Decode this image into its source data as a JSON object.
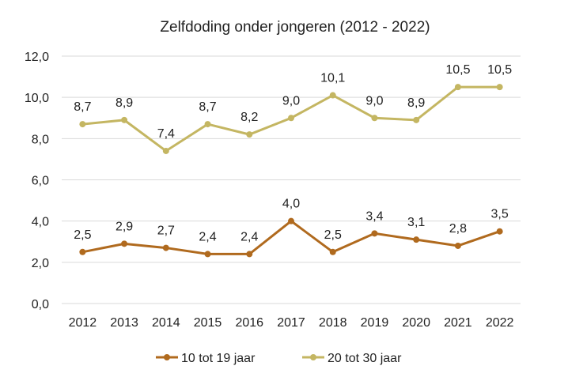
{
  "chart_data": {
    "type": "line",
    "title": "Zelfdoding onder jongeren (2012 - 2022)",
    "categories": [
      "2012",
      "2013",
      "2014",
      "2015",
      "2016",
      "2017",
      "2018",
      "2019",
      "2020",
      "2021",
      "2022"
    ],
    "ylim": [
      0,
      12
    ],
    "yticks": [
      "0,0",
      "2,0",
      "4,0",
      "6,0",
      "8,0",
      "10,0",
      "12,0"
    ],
    "grid": true,
    "legend_position": "bottom",
    "series": [
      {
        "name": "10 tot 19 jaar",
        "color": "#B06A1E",
        "values": [
          2.5,
          2.9,
          2.7,
          2.4,
          2.4,
          4.0,
          2.5,
          3.4,
          3.1,
          2.8,
          3.5
        ],
        "labels": [
          "2,5",
          "2,9",
          "2,7",
          "2,4",
          "2,4",
          "4,0",
          "2,5",
          "3,4",
          "3,1",
          "2,8",
          "3,5"
        ]
      },
      {
        "name": "20 tot 30 jaar",
        "color": "#C4B662",
        "values": [
          8.7,
          8.9,
          7.4,
          8.7,
          8.2,
          9.0,
          10.1,
          9.0,
          8.9,
          10.5,
          10.5
        ],
        "labels": [
          "8,7",
          "8,9",
          "7,4",
          "8,7",
          "8,2",
          "9,0",
          "10,1",
          "9,0",
          "8,9",
          "10,5",
          "10,5"
        ]
      }
    ]
  }
}
